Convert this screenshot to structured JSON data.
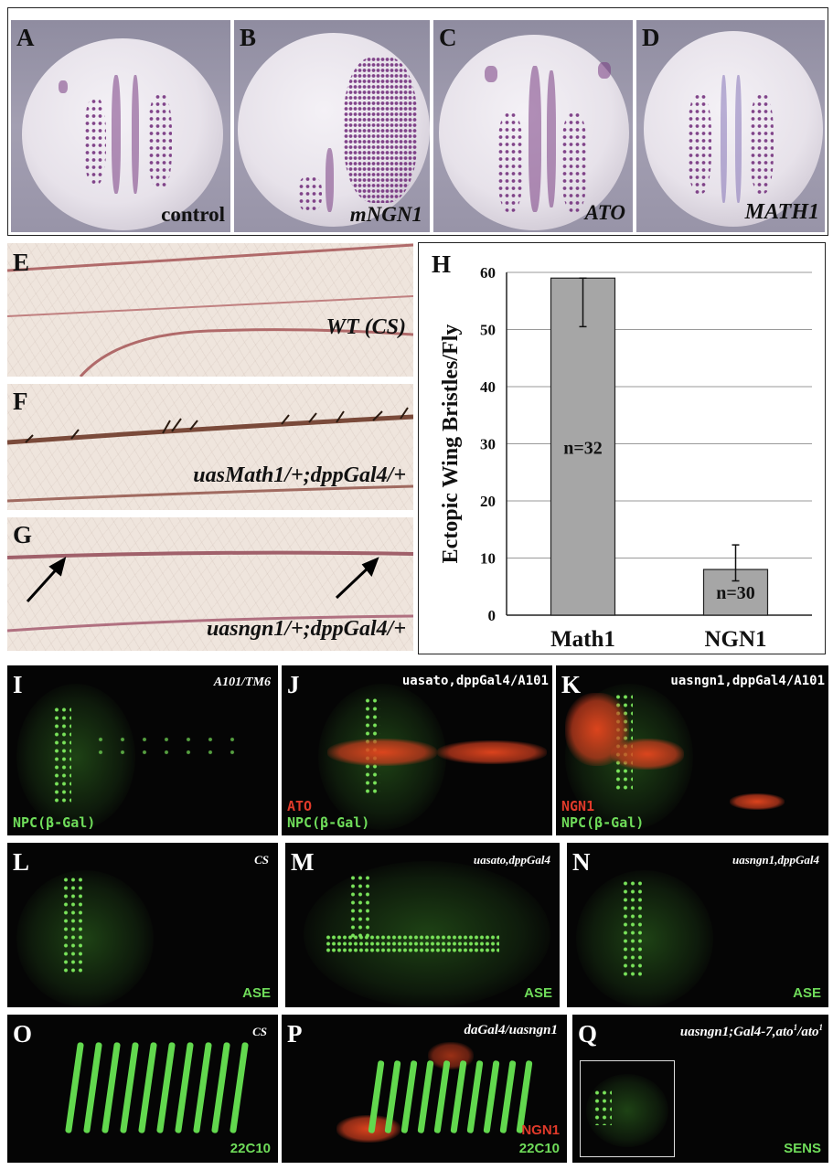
{
  "panels": {
    "A": {
      "letter": "A",
      "label": "control"
    },
    "B": {
      "letter": "B",
      "label": "mNGN1"
    },
    "C": {
      "letter": "C",
      "label": "ATO"
    },
    "D": {
      "letter": "D",
      "label": "MATH1"
    },
    "E": {
      "letter": "E",
      "label": "WT (CS)"
    },
    "F": {
      "letter": "F",
      "label": "uasMath1/+;dppGal4/+"
    },
    "G": {
      "letter": "G",
      "label": "uasngn1/+;dppGal4/+"
    },
    "H": {
      "letter": "H"
    },
    "I": {
      "letter": "I",
      "genotype": "A101/TM6",
      "marker": "NPC(β-Gal)"
    },
    "J": {
      "letter": "J",
      "genotype": "uasato,dppGal4/A101",
      "marker_red": "ATO",
      "marker": "NPC(β-Gal)"
    },
    "K": {
      "letter": "K",
      "genotype": "uasngn1,dppGal4/A101",
      "marker_red": "NGN1",
      "marker": "NPC(β-Gal)"
    },
    "L": {
      "letter": "L",
      "genotype": "CS",
      "marker": "ASE"
    },
    "M": {
      "letter": "M",
      "genotype": "uasato,dppGal4",
      "marker": "ASE"
    },
    "N": {
      "letter": "N",
      "genotype": "uasngn1,dppGal4",
      "marker": "ASE"
    },
    "O": {
      "letter": "O",
      "genotype": "CS",
      "marker": "22C10"
    },
    "P": {
      "letter": "P",
      "genotype": "daGal4/uasngn1",
      "marker_red": "NGN1",
      "marker": "22C10"
    },
    "Q": {
      "letter": "Q",
      "genotype": "uasngn1;Gal4-7,ato",
      "genotype_sup1": "1",
      "genotype_mid": "/ato",
      "genotype_sup2": "1",
      "marker": "SENS"
    }
  },
  "chart_data": {
    "type": "bar",
    "categories": [
      "Math1",
      "NGN1"
    ],
    "values": [
      59,
      8
    ],
    "error_bars": [
      {
        "low": 50.5,
        "high": 59
      },
      {
        "low": 6,
        "high": 12.3
      }
    ],
    "bar_labels": [
      "n=32",
      "n=30"
    ],
    "ylabel": "Ectopic Wing Bristles/Fly",
    "ylim": [
      0,
      60
    ],
    "yticks": [
      0,
      10,
      20,
      30,
      40,
      50,
      60
    ],
    "grid": true,
    "colors": {
      "bar": "#a6a6a6",
      "bar_edge": "#222222"
    }
  }
}
